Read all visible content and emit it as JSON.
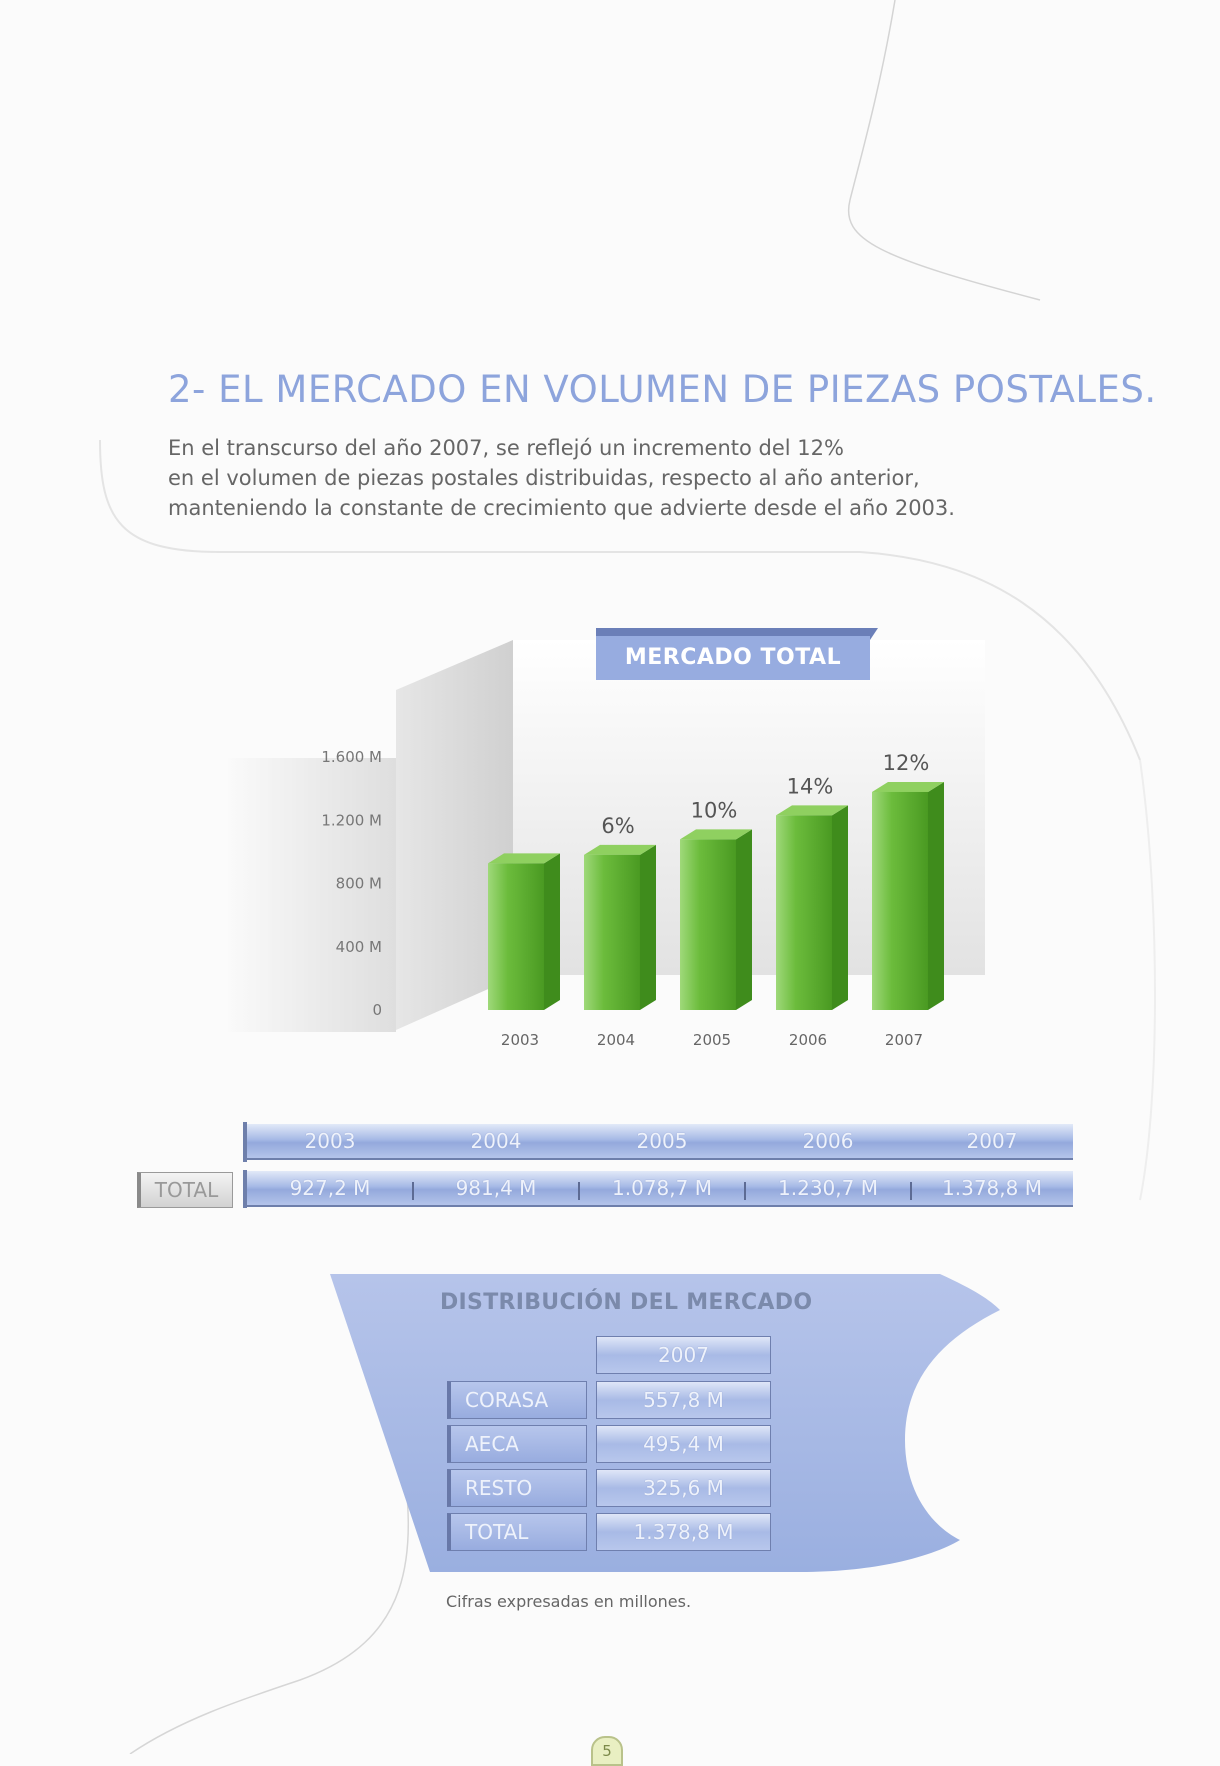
{
  "heading": "2- EL MERCADO EN VOLUMEN DE PIEZAS POSTALES.",
  "intro_lines": [
    "En el transcurso del año 2007, se reflejó un incremento del 12%",
    "en el volumen de piezas postales distribuidas, respecto al año anterior,",
    "manteniendo la constante de crecimiento que advierte desde el año 2003."
  ],
  "chart_data": {
    "type": "bar",
    "title": "MERCADO TOTAL",
    "categories": [
      "2003",
      "2004",
      "2005",
      "2006",
      "2007"
    ],
    "values": [
      927.2,
      981.4,
      1078.7,
      1230.7,
      1378.8
    ],
    "growth_labels": [
      "",
      "6%",
      "10%",
      "14%",
      "12%"
    ],
    "yticks": [
      0,
      400,
      800,
      1200,
      1600
    ],
    "ytick_labels": [
      "0",
      "400 M",
      "800 M",
      "1.200 M",
      "1.600 M"
    ],
    "ylim": [
      0,
      1600
    ],
    "grid": false,
    "colors": {
      "bar": "#6cb83a",
      "bar_dark": "#3f8c1c",
      "banner": "#97ace0"
    }
  },
  "totals_table": {
    "row_label": "TOTAL",
    "years": [
      "2003",
      "2004",
      "2005",
      "2006",
      "2007"
    ],
    "values": [
      "927,2 M",
      "981,4 M",
      "1.078,7 M",
      "1.230,7 M",
      "1.378,8 M"
    ]
  },
  "distribution": {
    "title": "DISTRIBUCIÓN DEL MERCADO",
    "column_header": "2007",
    "rows": [
      {
        "label": "CORASA",
        "value": "557,8 M"
      },
      {
        "label": "AECA",
        "value": "495,4 M"
      },
      {
        "label": "RESTO",
        "value": "325,6 M"
      },
      {
        "label": "TOTAL",
        "value": "1.378,8 M"
      }
    ]
  },
  "footnote": "Cifras expresadas en millones.",
  "page_number": "5"
}
